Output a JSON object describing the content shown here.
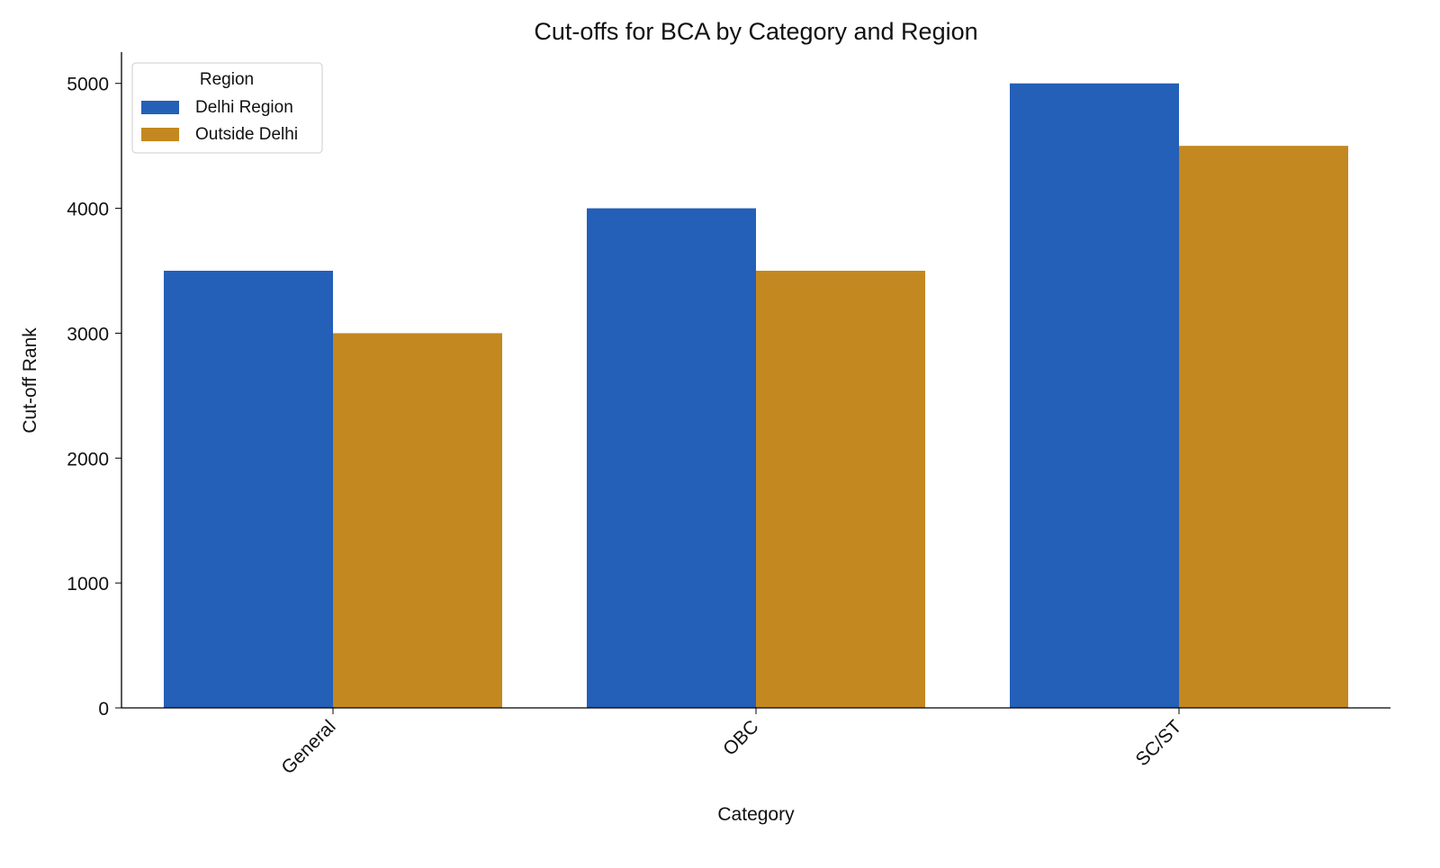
{
  "chart_data": {
    "type": "bar",
    "title": "Cut-offs for BCA by Category and Region",
    "xlabel": "Category",
    "ylabel": "Cut-off Rank",
    "categories": [
      "General",
      "OBC",
      "SC/ST"
    ],
    "series": [
      {
        "name": "Delhi Region",
        "values": [
          3500,
          4000,
          5000
        ],
        "color": "#245fb8"
      },
      {
        "name": "Outside Delhi",
        "values": [
          3000,
          3500,
          4500
        ],
        "color": "#c48820"
      }
    ],
    "ylim": [
      0,
      5250
    ],
    "yticks": [
      0,
      1000,
      2000,
      3000,
      4000,
      5000
    ],
    "legend": {
      "title": "Region",
      "placement": "top-left"
    },
    "grid": false
  }
}
